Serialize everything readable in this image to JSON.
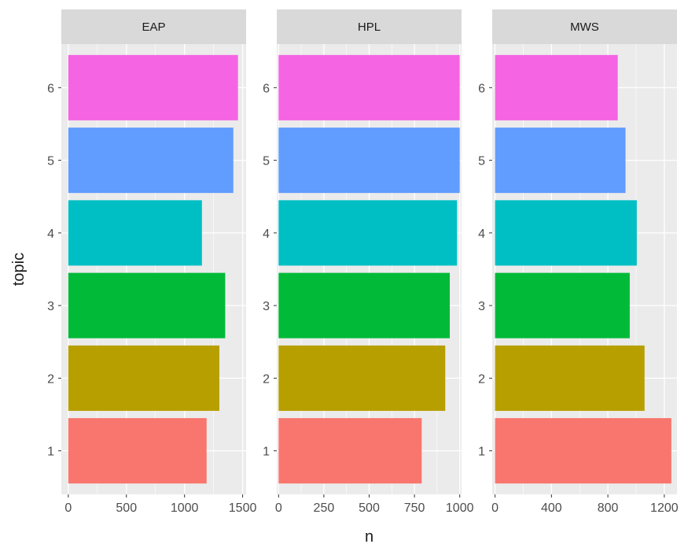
{
  "chart_data": {
    "type": "bar",
    "orientation": "horizontal",
    "xlabel": "n",
    "ylabel": "topic",
    "categories": [
      "1",
      "2",
      "3",
      "4",
      "5",
      "6"
    ],
    "grid": true,
    "legend": "none",
    "colors": {
      "1": "#F8766D",
      "2": "#B79F00",
      "3": "#00BA38",
      "4": "#00BFC4",
      "5": "#619CFF",
      "6": "#F564E3"
    },
    "panel_background": "#EBEBEB",
    "strip_background": "#D9D9D9",
    "facets": [
      {
        "name": "EAP",
        "xlim": [
          -60,
          1530
        ],
        "xticks": [
          0,
          500,
          1000,
          1500
        ],
        "xtick_labels": [
          "0",
          "500",
          "1000",
          "1500"
        ],
        "values": [
          1190,
          1300,
          1350,
          1150,
          1420,
          1460
        ]
      },
      {
        "name": "HPL",
        "xlim": [
          -10,
          1010
        ],
        "xticks": [
          0,
          250,
          500,
          750,
          1000
        ],
        "xtick_labels": [
          "0",
          "250",
          "500",
          "750",
          "1000"
        ],
        "values": [
          790,
          920,
          945,
          985,
          1000,
          1000
        ]
      },
      {
        "name": "MWS",
        "xlim": [
          -20,
          1290
        ],
        "xticks": [
          0,
          400,
          800,
          1200
        ],
        "xtick_labels": [
          "0",
          "400",
          "800",
          "1200"
        ],
        "values": [
          1250,
          1060,
          955,
          1005,
          925,
          870
        ]
      }
    ]
  }
}
